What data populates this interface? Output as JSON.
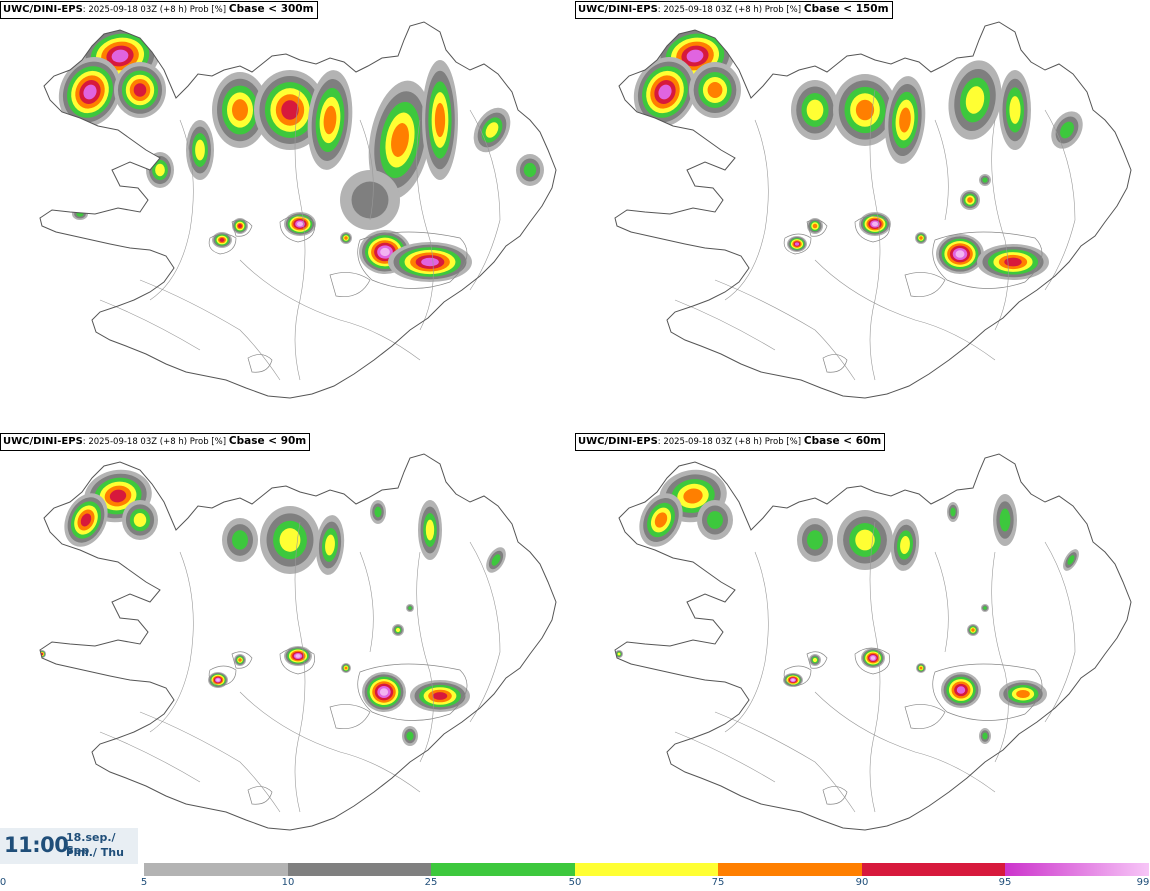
{
  "panels": [
    {
      "model": "UWC/DINI-EPS",
      "meta": ": 2025-09-18 03Z (+8 h) Prob [%]",
      "threshold": "Cbase < 300m"
    },
    {
      "model": "UWC/DINI-EPS",
      "meta": ": 2025-09-18 03Z (+8 h) Prob [%]",
      "threshold": "Cbase < 150m"
    },
    {
      "model": "UWC/DINI-EPS",
      "meta": ": 2025-09-18 03Z (+8 h) Prob [%]",
      "threshold": "Cbase < 90m"
    },
    {
      "model": "UWC/DINI-EPS",
      "meta": ": 2025-09-18 03Z (+8 h) Prob [%]",
      "threshold": "Cbase < 60m"
    }
  ],
  "valid_time": {
    "time": "11:00",
    "date": "18.sep./ Sep",
    "day": "Fim./ Thu"
  },
  "colorbar": {
    "ticks": [
      "0",
      "5",
      "10",
      "25",
      "50",
      "75",
      "90",
      "95",
      "99"
    ],
    "segments": [
      {
        "from": 5,
        "to": 10,
        "color": "#b3b3b3"
      },
      {
        "from": 10,
        "to": 25,
        "color": "#7f7f7f"
      },
      {
        "from": 25,
        "to": 50,
        "color": "#3dc83d"
      },
      {
        "from": 50,
        "to": 75,
        "color": "#ffff33"
      },
      {
        "from": 75,
        "to": 90,
        "color": "#ff7f00"
      },
      {
        "from": 90,
        "to": 95,
        "color": "#d7193c"
      },
      {
        "from": 95,
        "to": 99,
        "color": "#cc33cc",
        "gradient_to": "#f7c6f7"
      }
    ]
  },
  "colors": {
    "outline": "#555555",
    "water": "#ffffff",
    "label": "#1f4e79"
  }
}
